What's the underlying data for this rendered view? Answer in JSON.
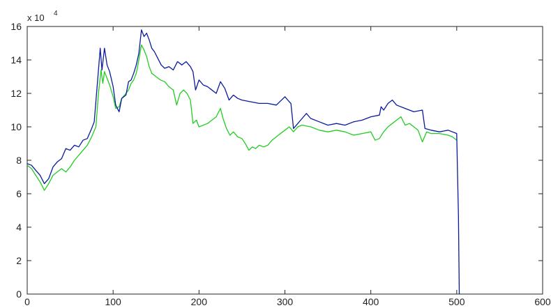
{
  "chart_data": {
    "type": "line",
    "title": "",
    "xlabel": "",
    "ylabel": "",
    "y_multiplier_label": {
      "base": "x 10",
      "exponent": "4"
    },
    "xlim": [
      0,
      600
    ],
    "ylim": [
      0,
      16
    ],
    "x_ticks": [
      0,
      100,
      200,
      300,
      400,
      500,
      600
    ],
    "y_ticks": [
      0,
      2,
      4,
      6,
      8,
      10,
      12,
      14,
      16
    ],
    "grid": false,
    "legend": "none",
    "series": [
      {
        "color": "#0a1a9e",
        "points": [
          [
            0,
            7.8
          ],
          [
            5,
            7.7
          ],
          [
            10,
            7.4
          ],
          [
            15,
            7.1
          ],
          [
            20,
            6.6
          ],
          [
            25,
            6.9
          ],
          [
            30,
            7.6
          ],
          [
            35,
            7.9
          ],
          [
            40,
            8.1
          ],
          [
            45,
            8.7
          ],
          [
            50,
            8.6
          ],
          [
            55,
            8.9
          ],
          [
            60,
            8.8
          ],
          [
            65,
            9.2
          ],
          [
            70,
            9.3
          ],
          [
            75,
            9.9
          ],
          [
            78,
            10.3
          ],
          [
            82,
            12.8
          ],
          [
            85,
            14.7
          ],
          [
            87,
            13.4
          ],
          [
            90,
            14.7
          ],
          [
            93,
            13.7
          ],
          [
            96,
            13.3
          ],
          [
            100,
            12.4
          ],
          [
            103,
            11.3
          ],
          [
            107,
            10.9
          ],
          [
            110,
            11.7
          ],
          [
            115,
            11.9
          ],
          [
            118,
            12.7
          ],
          [
            121,
            12.8
          ],
          [
            124,
            13.2
          ],
          [
            127,
            13.7
          ],
          [
            130,
            14.4
          ],
          [
            133,
            15.8
          ],
          [
            136,
            15.4
          ],
          [
            139,
            15.6
          ],
          [
            142,
            15.2
          ],
          [
            145,
            14.7
          ],
          [
            148,
            14.5
          ],
          [
            152,
            14.1
          ],
          [
            156,
            13.7
          ],
          [
            160,
            13.5
          ],
          [
            165,
            13.6
          ],
          [
            170,
            13.4
          ],
          [
            175,
            13.9
          ],
          [
            180,
            13.7
          ],
          [
            185,
            13.9
          ],
          [
            190,
            13.6
          ],
          [
            193,
            13.3
          ],
          [
            196,
            12.2
          ],
          [
            200,
            12.8
          ],
          [
            205,
            12.5
          ],
          [
            210,
            12.4
          ],
          [
            215,
            12.2
          ],
          [
            220,
            12.0
          ],
          [
            225,
            12.7
          ],
          [
            230,
            12.3
          ],
          [
            235,
            11.6
          ],
          [
            240,
            11.9
          ],
          [
            245,
            11.7
          ],
          [
            250,
            11.6
          ],
          [
            260,
            11.5
          ],
          [
            270,
            11.4
          ],
          [
            280,
            11.4
          ],
          [
            290,
            11.3
          ],
          [
            300,
            11.8
          ],
          [
            305,
            11.5
          ],
          [
            307,
            11.4
          ],
          [
            310,
            9.9
          ],
          [
            315,
            10.2
          ],
          [
            320,
            10.5
          ],
          [
            325,
            10.8
          ],
          [
            330,
            10.5
          ],
          [
            340,
            10.3
          ],
          [
            350,
            10.1
          ],
          [
            360,
            10.2
          ],
          [
            370,
            10.1
          ],
          [
            380,
            10.3
          ],
          [
            390,
            10.4
          ],
          [
            400,
            10.6
          ],
          [
            410,
            10.7
          ],
          [
            412,
            11.2
          ],
          [
            415,
            11.0
          ],
          [
            420,
            11.4
          ],
          [
            425,
            11.6
          ],
          [
            430,
            11.3
          ],
          [
            440,
            11.1
          ],
          [
            450,
            10.9
          ],
          [
            460,
            11.0
          ],
          [
            463,
            9.9
          ],
          [
            470,
            9.8
          ],
          [
            480,
            9.7
          ],
          [
            490,
            9.8
          ],
          [
            500,
            9.6
          ],
          [
            501,
            7.0
          ],
          [
            502,
            4.7
          ],
          [
            503,
            0.0
          ]
        ]
      },
      {
        "color": "#22cc22",
        "points": [
          [
            0,
            7.7
          ],
          [
            5,
            7.5
          ],
          [
            10,
            7.1
          ],
          [
            15,
            6.7
          ],
          [
            20,
            6.2
          ],
          [
            25,
            6.6
          ],
          [
            30,
            7.1
          ],
          [
            35,
            7.3
          ],
          [
            40,
            7.5
          ],
          [
            45,
            7.3
          ],
          [
            50,
            7.6
          ],
          [
            55,
            8.0
          ],
          [
            60,
            8.3
          ],
          [
            65,
            8.6
          ],
          [
            70,
            8.9
          ],
          [
            75,
            9.4
          ],
          [
            80,
            10.0
          ],
          [
            83,
            12.0
          ],
          [
            86,
            13.4
          ],
          [
            88,
            12.6
          ],
          [
            90,
            13.3
          ],
          [
            93,
            12.9
          ],
          [
            96,
            12.5
          ],
          [
            100,
            11.8
          ],
          [
            103,
            11.1
          ],
          [
            107,
            11.2
          ],
          [
            110,
            11.7
          ],
          [
            115,
            12.0
          ],
          [
            118,
            12.2
          ],
          [
            121,
            12.6
          ],
          [
            124,
            12.8
          ],
          [
            127,
            13.2
          ],
          [
            130,
            14.0
          ],
          [
            133,
            14.9
          ],
          [
            136,
            14.6
          ],
          [
            139,
            14.2
          ],
          [
            142,
            13.6
          ],
          [
            145,
            13.2
          ],
          [
            150,
            13.0
          ],
          [
            155,
            12.8
          ],
          [
            160,
            12.7
          ],
          [
            165,
            12.4
          ],
          [
            170,
            12.2
          ],
          [
            174,
            11.3
          ],
          [
            178,
            12.0
          ],
          [
            182,
            12.2
          ],
          [
            186,
            12.0
          ],
          [
            190,
            11.6
          ],
          [
            193,
            10.2
          ],
          [
            197,
            10.4
          ],
          [
            200,
            10.0
          ],
          [
            205,
            10.1
          ],
          [
            210,
            10.2
          ],
          [
            215,
            10.4
          ],
          [
            220,
            10.6
          ],
          [
            225,
            11.1
          ],
          [
            228,
            10.5
          ],
          [
            232,
            9.9
          ],
          [
            236,
            9.5
          ],
          [
            240,
            9.7
          ],
          [
            245,
            9.4
          ],
          [
            250,
            9.3
          ],
          [
            255,
            8.9
          ],
          [
            258,
            8.6
          ],
          [
            262,
            8.8
          ],
          [
            266,
            8.7
          ],
          [
            270,
            8.9
          ],
          [
            275,
            8.8
          ],
          [
            280,
            8.9
          ],
          [
            285,
            9.2
          ],
          [
            290,
            9.4
          ],
          [
            295,
            9.6
          ],
          [
            300,
            9.8
          ],
          [
            305,
            10.0
          ],
          [
            310,
            9.7
          ],
          [
            315,
            10.0
          ],
          [
            320,
            10.1
          ],
          [
            330,
            10.0
          ],
          [
            340,
            9.8
          ],
          [
            350,
            9.7
          ],
          [
            360,
            9.8
          ],
          [
            370,
            9.7
          ],
          [
            380,
            9.5
          ],
          [
            390,
            9.6
          ],
          [
            400,
            9.7
          ],
          [
            405,
            9.2
          ],
          [
            410,
            9.3
          ],
          [
            415,
            9.7
          ],
          [
            420,
            10.0
          ],
          [
            425,
            10.2
          ],
          [
            430,
            10.4
          ],
          [
            435,
            10.6
          ],
          [
            440,
            10.1
          ],
          [
            445,
            10.2
          ],
          [
            450,
            10.0
          ],
          [
            455,
            9.8
          ],
          [
            460,
            9.1
          ],
          [
            465,
            9.7
          ],
          [
            470,
            9.6
          ],
          [
            480,
            9.6
          ],
          [
            490,
            9.5
          ],
          [
            495,
            9.4
          ],
          [
            500,
            9.2
          ]
        ]
      }
    ]
  }
}
